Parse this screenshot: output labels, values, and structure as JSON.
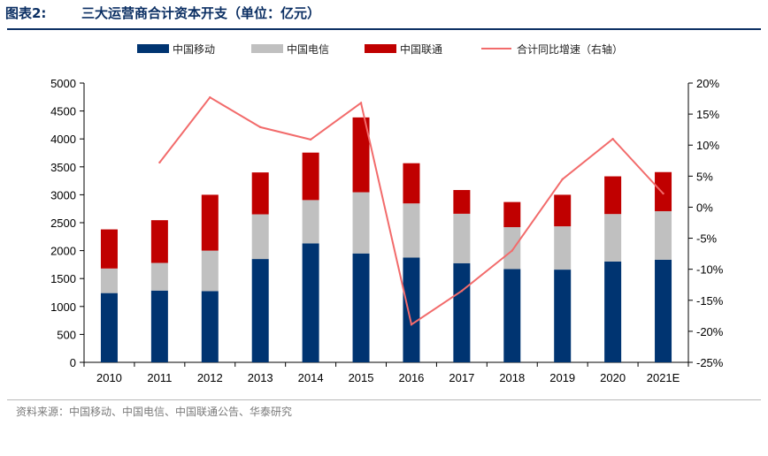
{
  "figure": {
    "label": "图表2:",
    "title": "三大运营商合计资本开支（单位：亿元）",
    "source": "资料来源：中国移动、中国电信、中国联通公告、华泰研究"
  },
  "chart_data": {
    "type": "bar",
    "stacked": true,
    "categories": [
      "2010",
      "2011",
      "2012",
      "2013",
      "2014",
      "2015",
      "2016",
      "2017",
      "2018",
      "2019",
      "2020",
      "2021E"
    ],
    "series": [
      {
        "name": "中国移动",
        "color": "#003471",
        "values": [
          1240,
          1285,
          1275,
          1850,
          2130,
          1950,
          1875,
          1775,
          1670,
          1660,
          1805,
          1836
        ]
      },
      {
        "name": "中国电信",
        "color": "#c0c0c0",
        "values": [
          440,
          495,
          725,
          800,
          775,
          1095,
          970,
          885,
          750,
          775,
          850,
          870
        ]
      },
      {
        "name": "中国联通",
        "color": "#c00000",
        "values": [
          700,
          765,
          1000,
          750,
          850,
          1340,
          720,
          425,
          450,
          565,
          675,
          700
        ]
      }
    ],
    "line_series": {
      "name": "合计同比增速（右轴）",
      "color": "#f26b6b",
      "axis": "right",
      "values": [
        null,
        7.2,
        17.7,
        12.9,
        10.9,
        16.8,
        -18.9,
        -13.5,
        -7.0,
        4.5,
        11.0,
        2.2
      ]
    },
    "ylim": [
      0,
      5000
    ],
    "yticks": [
      0,
      500,
      1000,
      1500,
      2000,
      2500,
      3000,
      3500,
      4000,
      4500,
      5000
    ],
    "y2lim": [
      -25,
      20
    ],
    "y2ticks": [
      "-25%",
      "-20%",
      "-15%",
      "-10%",
      "-5%",
      "0%",
      "5%",
      "10%",
      "15%",
      "20%"
    ],
    "legend": {
      "position": "top",
      "items": [
        "中国移动",
        "中国电信",
        "中国联通",
        "合计同比增速（右轴）"
      ]
    },
    "grid": false
  }
}
